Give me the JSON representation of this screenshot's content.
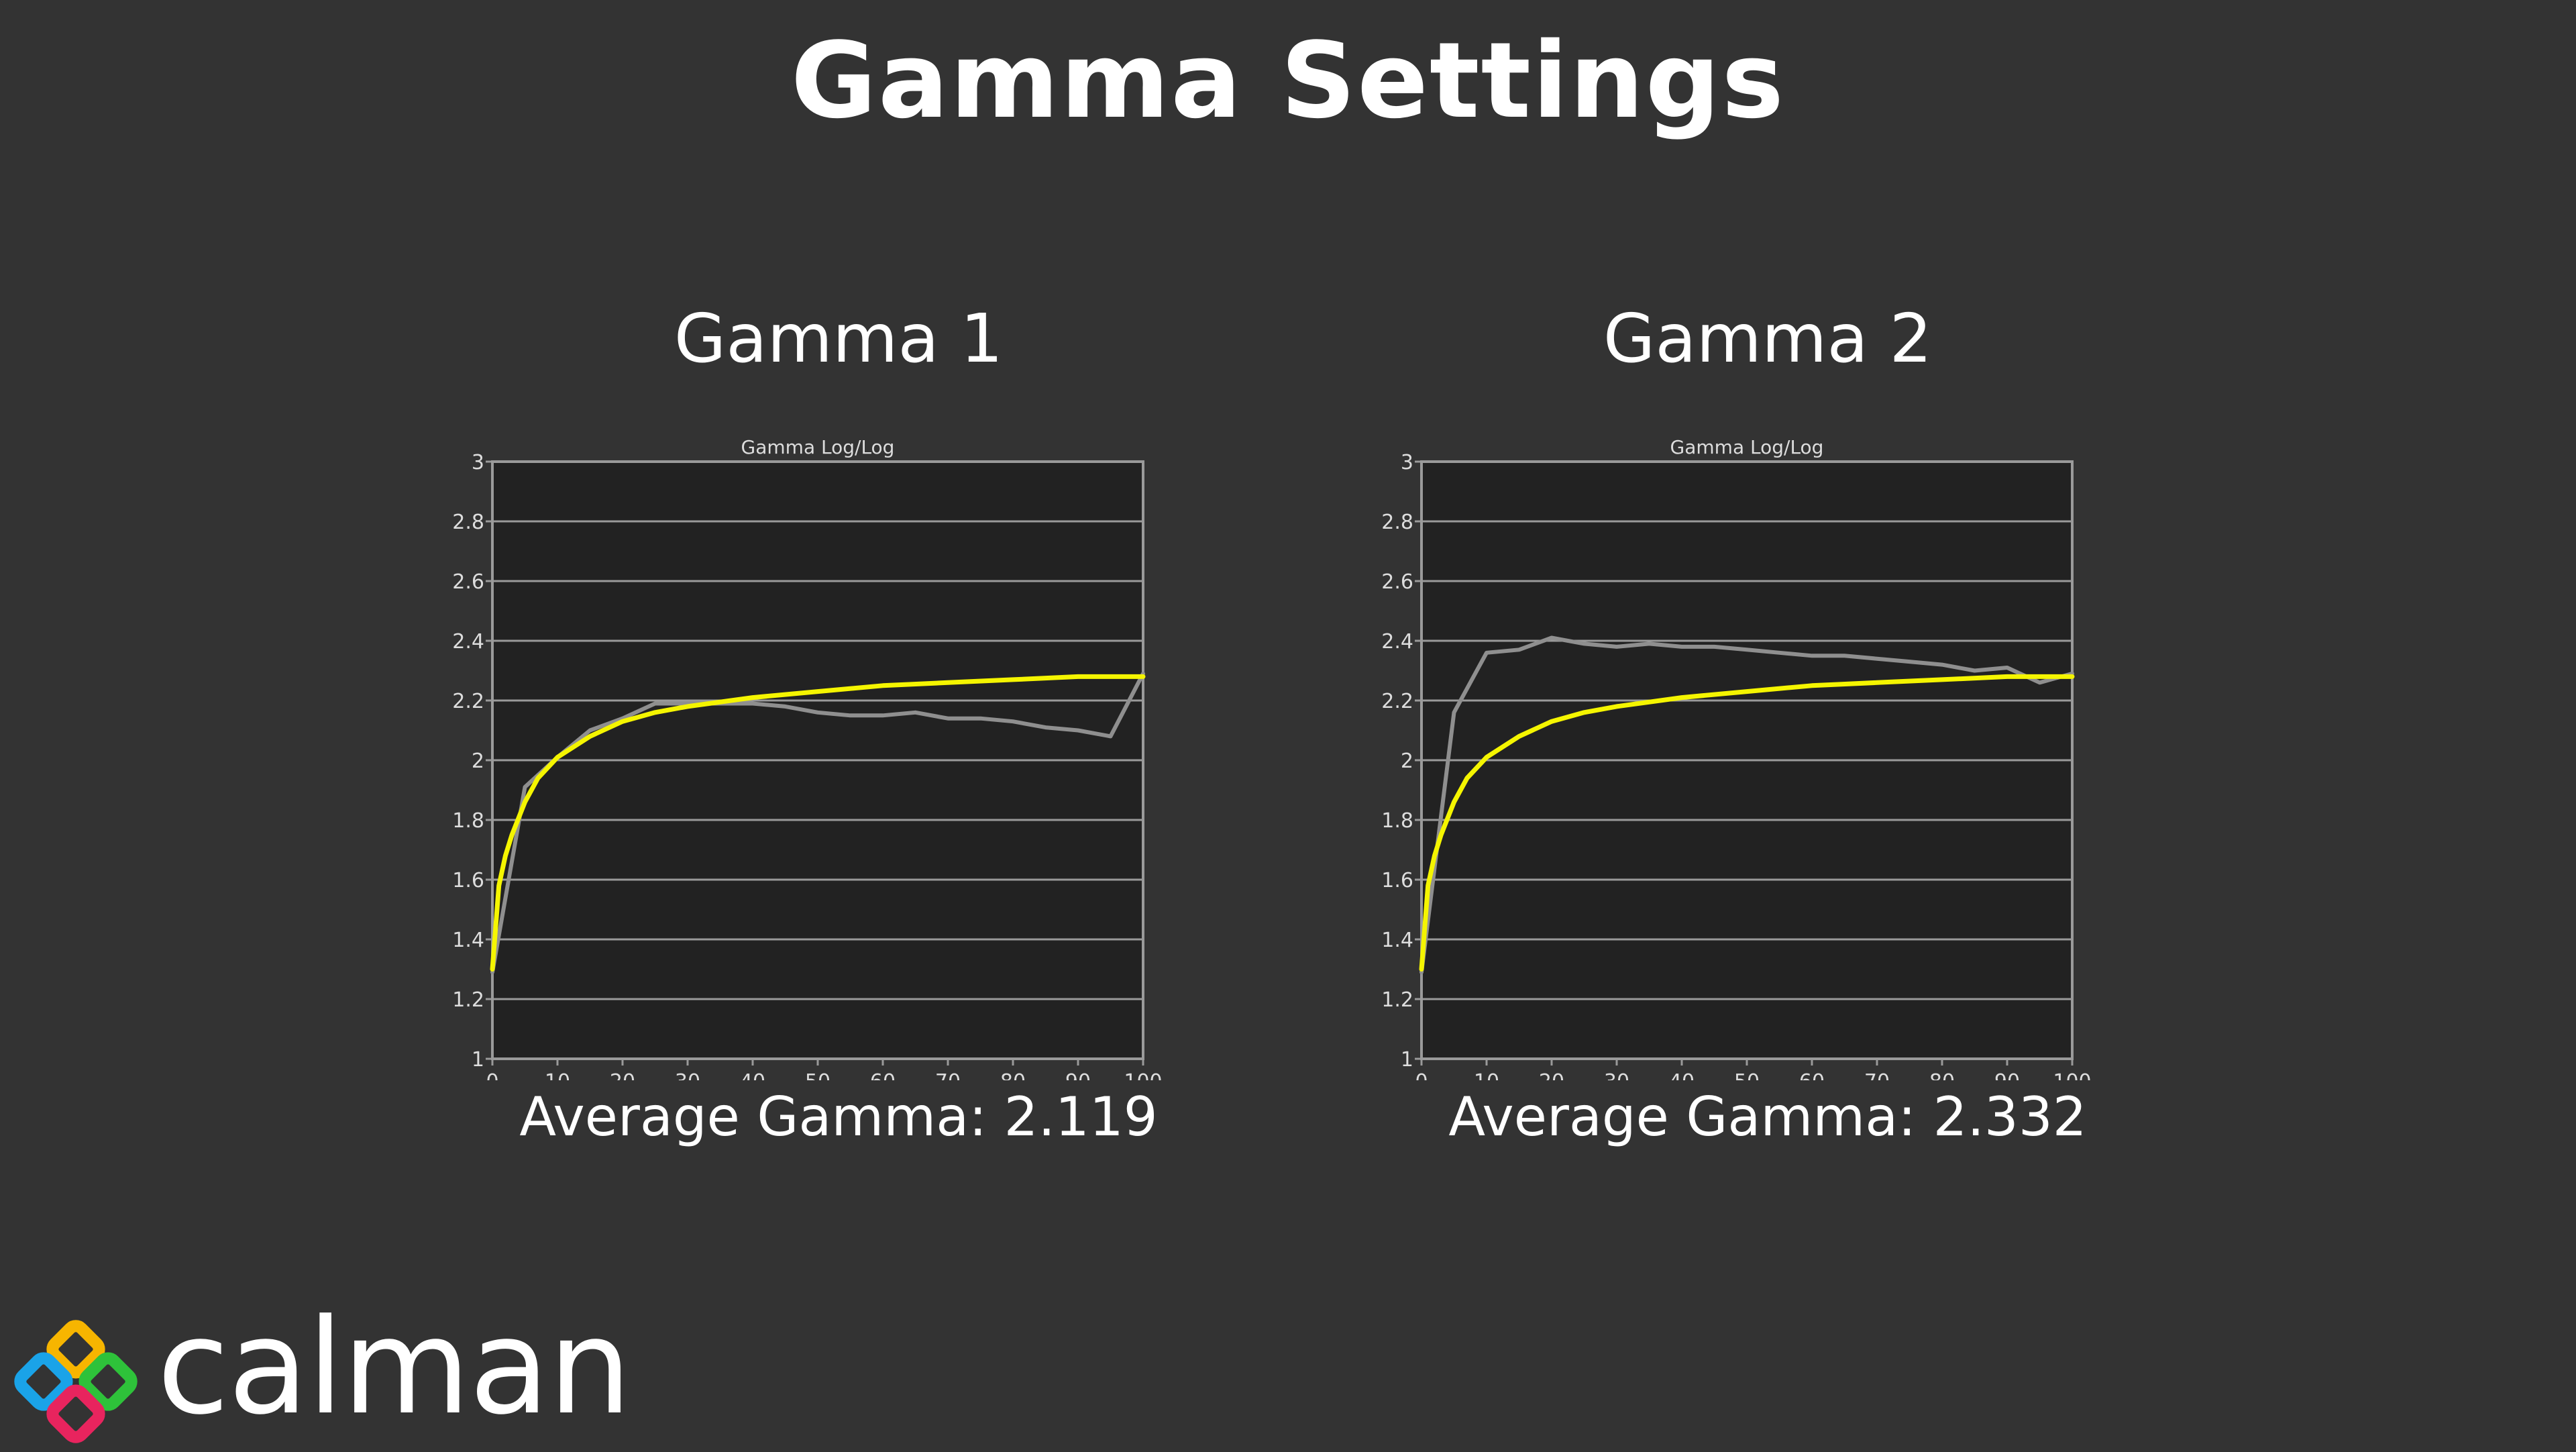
{
  "page": {
    "title": "Gamma Settings"
  },
  "colors": {
    "background": "#333333",
    "plot_background": "#222222",
    "grid": "#9a9a9a",
    "measured_line": "#8f8f8f",
    "target_line": "#f5f500"
  },
  "chart_data": [
    {
      "id": "gamma-1",
      "heading": "Gamma 1",
      "type": "line",
      "title": "Gamma Log/Log",
      "xlim": [
        0,
        100
      ],
      "ylim": [
        1,
        3
      ],
      "x_ticks": [
        "0",
        "10",
        "20",
        "30",
        "40",
        "50",
        "60",
        "70",
        "80",
        "90",
        "100"
      ],
      "y_ticks": [
        "1",
        "1.2",
        "1.4",
        "1.6",
        "1.8",
        "2",
        "2.2",
        "2.4",
        "2.6",
        "2.8",
        "3"
      ],
      "grid": true,
      "average_label": "Average Gamma: 2.119",
      "series": [
        {
          "role": "measured",
          "color": "#8f8f8f",
          "x": [
            0,
            5,
            10,
            15,
            20,
            25,
            30,
            35,
            40,
            45,
            50,
            55,
            60,
            65,
            70,
            75,
            80,
            85,
            90,
            95,
            100
          ],
          "y": [
            1.29,
            1.91,
            2.01,
            2.1,
            2.14,
            2.19,
            2.19,
            2.19,
            2.19,
            2.18,
            2.16,
            2.15,
            2.15,
            2.16,
            2.14,
            2.14,
            2.13,
            2.11,
            2.1,
            2.08,
            2.29
          ]
        },
        {
          "role": "target",
          "color": "#f5f500",
          "x": [
            0,
            1,
            2,
            3,
            5,
            7,
            10,
            15,
            20,
            25,
            30,
            40,
            50,
            60,
            70,
            80,
            90,
            100
          ],
          "y": [
            1.3,
            1.58,
            1.68,
            1.75,
            1.86,
            1.94,
            2.01,
            2.08,
            2.13,
            2.16,
            2.18,
            2.21,
            2.23,
            2.25,
            2.26,
            2.27,
            2.28,
            2.28
          ]
        }
      ]
    },
    {
      "id": "gamma-2",
      "heading": "Gamma 2",
      "type": "line",
      "title": "Gamma Log/Log",
      "xlim": [
        0,
        100
      ],
      "ylim": [
        1,
        3
      ],
      "x_ticks": [
        "0",
        "10",
        "20",
        "30",
        "40",
        "50",
        "60",
        "70",
        "80",
        "90",
        "100"
      ],
      "y_ticks": [
        "1",
        "1.2",
        "1.4",
        "1.6",
        "1.8",
        "2",
        "2.2",
        "2.4",
        "2.6",
        "2.8",
        "3"
      ],
      "grid": true,
      "average_label": "Average Gamma: 2.332",
      "series": [
        {
          "role": "measured",
          "color": "#8f8f8f",
          "x": [
            0,
            5,
            10,
            15,
            20,
            25,
            30,
            35,
            40,
            45,
            50,
            55,
            60,
            65,
            70,
            75,
            80,
            85,
            90,
            95,
            100
          ],
          "y": [
            1.29,
            2.16,
            2.36,
            2.37,
            2.41,
            2.39,
            2.38,
            2.39,
            2.38,
            2.38,
            2.37,
            2.36,
            2.35,
            2.35,
            2.34,
            2.33,
            2.32,
            2.3,
            2.31,
            2.26,
            2.29
          ]
        },
        {
          "role": "target",
          "color": "#f5f500",
          "x": [
            0,
            1,
            2,
            3,
            5,
            7,
            10,
            15,
            20,
            25,
            30,
            40,
            50,
            60,
            70,
            80,
            90,
            100
          ],
          "y": [
            1.3,
            1.58,
            1.68,
            1.75,
            1.86,
            1.94,
            2.01,
            2.08,
            2.13,
            2.16,
            2.18,
            2.21,
            2.23,
            2.25,
            2.26,
            2.27,
            2.28,
            2.28
          ]
        }
      ]
    }
  ],
  "logo": {
    "text": "calman",
    "icon": "calman-diamond-logo-icon",
    "diamond_colors": [
      "#f7b500",
      "#1aa3e8",
      "#2ec23a",
      "#e8245e"
    ]
  }
}
